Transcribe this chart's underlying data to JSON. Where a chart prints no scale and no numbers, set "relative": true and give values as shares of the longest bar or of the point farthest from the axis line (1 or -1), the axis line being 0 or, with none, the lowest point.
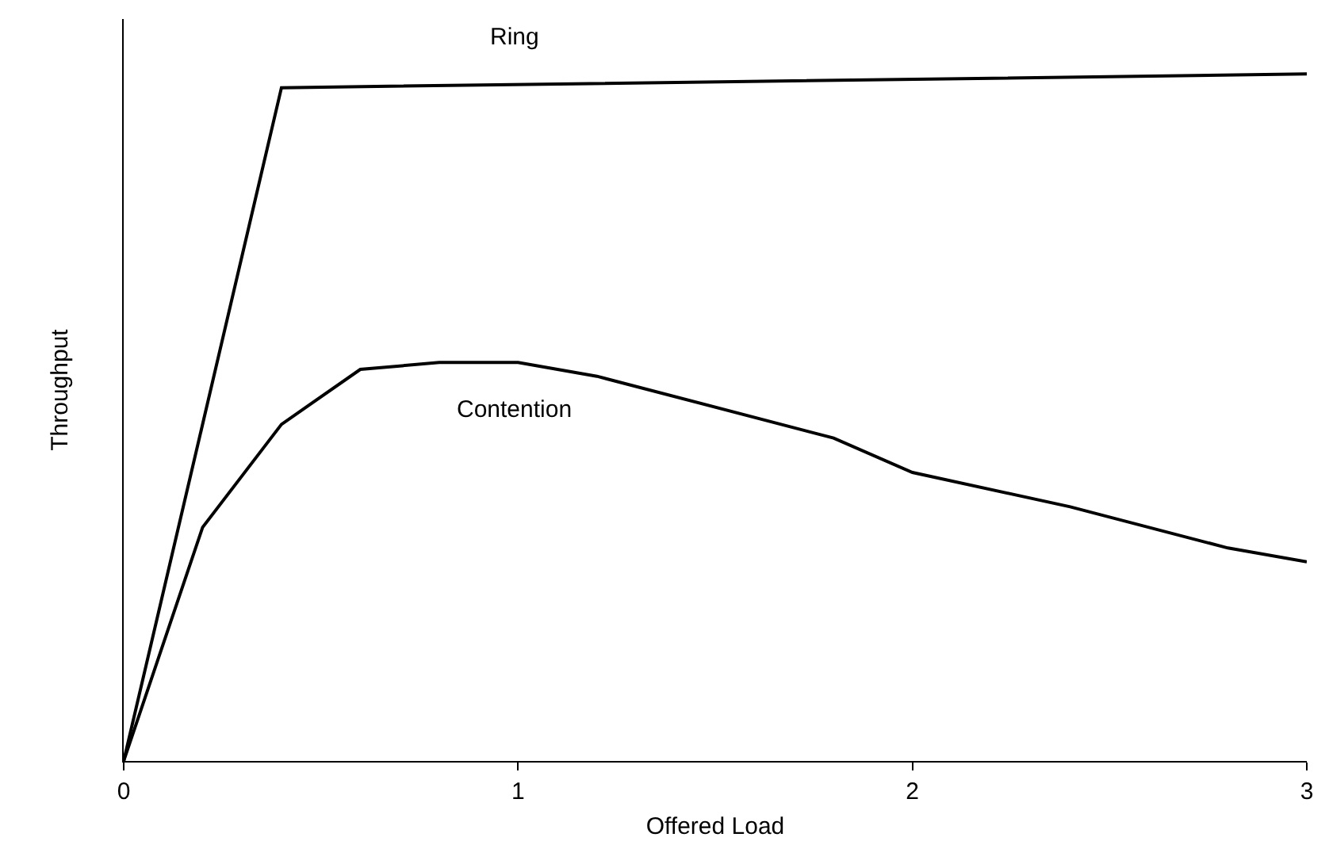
{
  "chart_data": {
    "type": "line",
    "relative": true,
    "xlabel": "Offered Load",
    "ylabel": "Throughput",
    "xlim": [
      0,
      3
    ],
    "xticks": [
      0,
      1,
      2,
      3
    ],
    "tick_labels": "x",
    "legend": false,
    "grid": false,
    "marker": "none",
    "line_style": "solid",
    "series": [
      {
        "name": "Ring",
        "color": "#000000",
        "x": [
          0,
          0.4,
          3
        ],
        "values": [
          0,
          0.98,
          1
        ]
      },
      {
        "name": "Contention",
        "color": "#000000",
        "x": [
          0,
          0.2,
          0.4,
          0.6,
          0.8,
          1.0,
          1.2,
          1.8,
          2.0,
          2.4,
          2.8,
          3.0
        ],
        "values": [
          0,
          0.34,
          0.49,
          0.57,
          0.58,
          0.58,
          0.56,
          0.47,
          0.42,
          0.37,
          0.31,
          0.29
        ]
      }
    ]
  }
}
